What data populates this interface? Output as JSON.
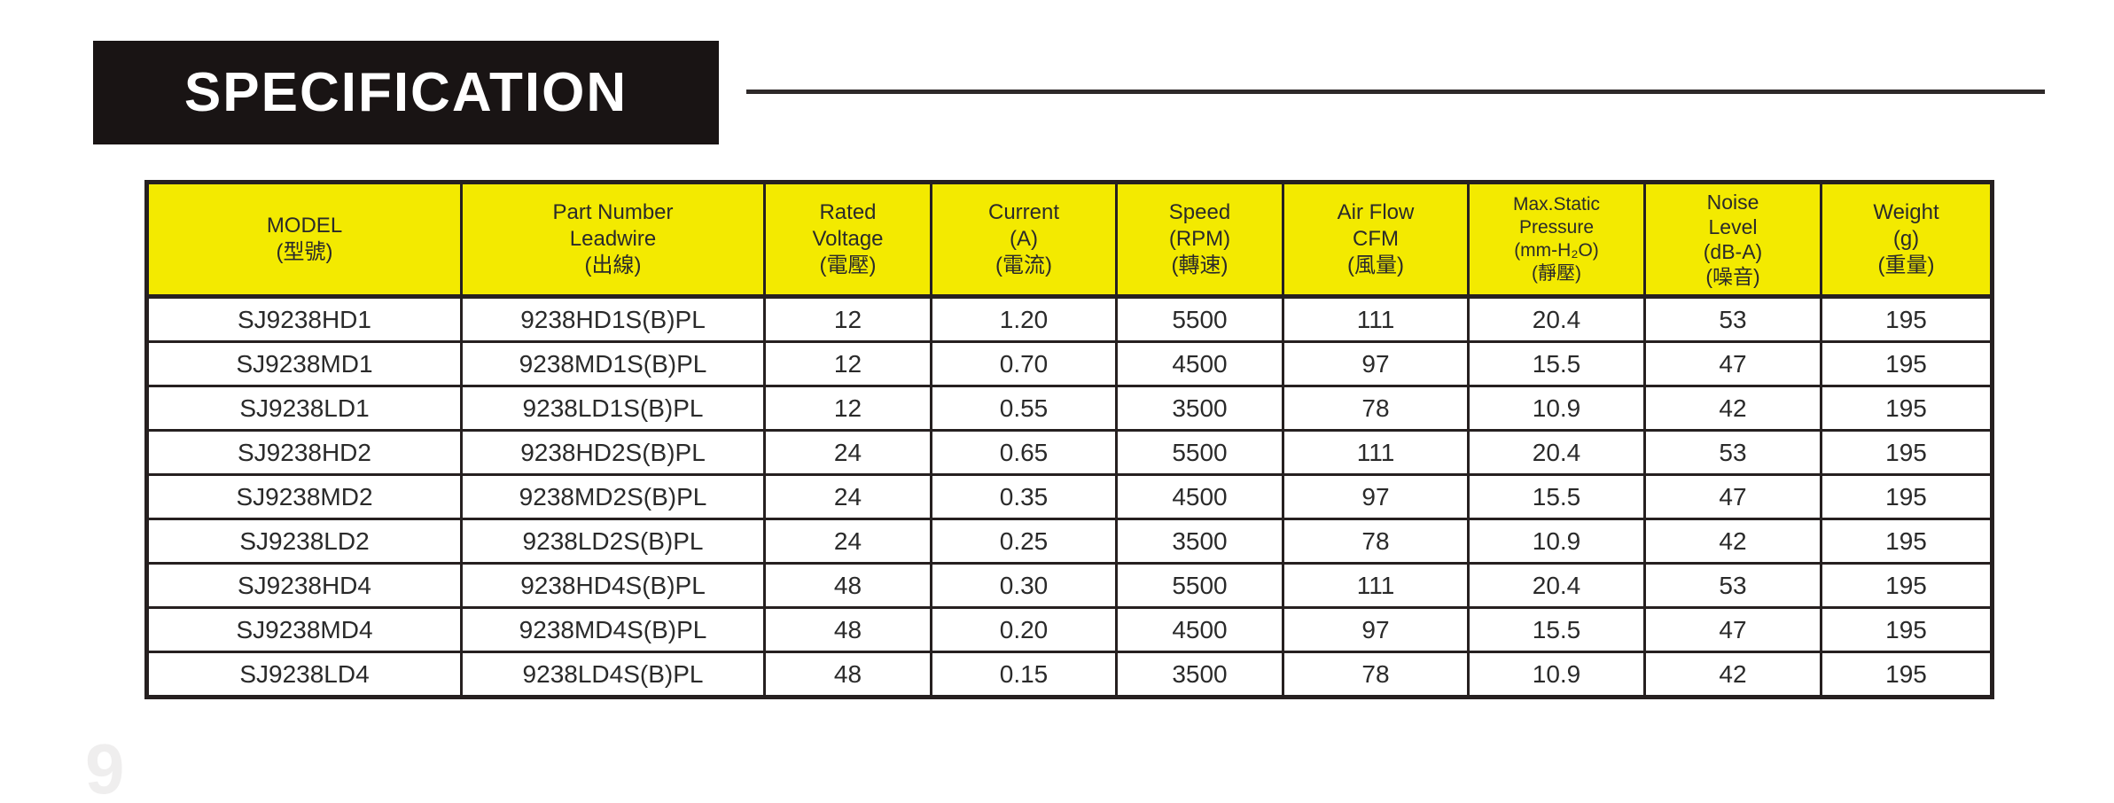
{
  "title": {
    "label": "SPECIFICATION"
  },
  "colors": {
    "header_bar": "#191414",
    "table_header_bg": "#f3ea00",
    "table_border": "#262020",
    "title_text": "#ffffff"
  },
  "table": {
    "columns": [
      {
        "l1": "MODEL",
        "l2": "(型號)"
      },
      {
        "l1": "Part Number",
        "l2": "Leadwire",
        "l3": "(出線)"
      },
      {
        "l1": "Rated",
        "l2": "Voltage",
        "l3": "(電壓)"
      },
      {
        "l1": "Current",
        "l2": "(A)",
        "l3": "(電流)"
      },
      {
        "l1": "Speed",
        "l2": "(RPM)",
        "l3": "(轉速)"
      },
      {
        "l1": "Air Flow",
        "l2": "CFM",
        "l3": "(風量)"
      },
      {
        "l1": "Max.Static",
        "l2": "Pressure",
        "l3": "(mm-H₂O)",
        "l4": "(靜壓)"
      },
      {
        "l1": "Noise",
        "l2": "Level",
        "l3": "(dB-A)",
        "l4": "(噪音)"
      },
      {
        "l1": "Weight",
        "l2": "(g)",
        "l3": "(重量)"
      }
    ],
    "rows": [
      [
        "SJ9238HD1",
        "9238HD1S(B)PL",
        "12",
        "1.20",
        "5500",
        "111",
        "20.4",
        "53",
        "195"
      ],
      [
        "SJ9238MD1",
        "9238MD1S(B)PL",
        "12",
        "0.70",
        "4500",
        "97",
        "15.5",
        "47",
        "195"
      ],
      [
        "SJ9238LD1",
        "9238LD1S(B)PL",
        "12",
        "0.55",
        "3500",
        "78",
        "10.9",
        "42",
        "195"
      ],
      [
        "SJ9238HD2",
        "9238HD2S(B)PL",
        "24",
        "0.65",
        "5500",
        "111",
        "20.4",
        "53",
        "195"
      ],
      [
        "SJ9238MD2",
        "9238MD2S(B)PL",
        "24",
        "0.35",
        "4500",
        "97",
        "15.5",
        "47",
        "195"
      ],
      [
        "SJ9238LD2",
        "9238LD2S(B)PL",
        "24",
        "0.25",
        "3500",
        "78",
        "10.9",
        "42",
        "195"
      ],
      [
        "SJ9238HD4",
        "9238HD4S(B)PL",
        "48",
        "0.30",
        "5500",
        "111",
        "20.4",
        "53",
        "195"
      ],
      [
        "SJ9238MD4",
        "9238MD4S(B)PL",
        "48",
        "0.20",
        "4500",
        "97",
        "15.5",
        "47",
        "195"
      ],
      [
        "SJ9238LD4",
        "9238LD4S(B)PL",
        "48",
        "0.15",
        "3500",
        "78",
        "10.9",
        "42",
        "195"
      ]
    ]
  },
  "watermark": {
    "label": "9"
  }
}
